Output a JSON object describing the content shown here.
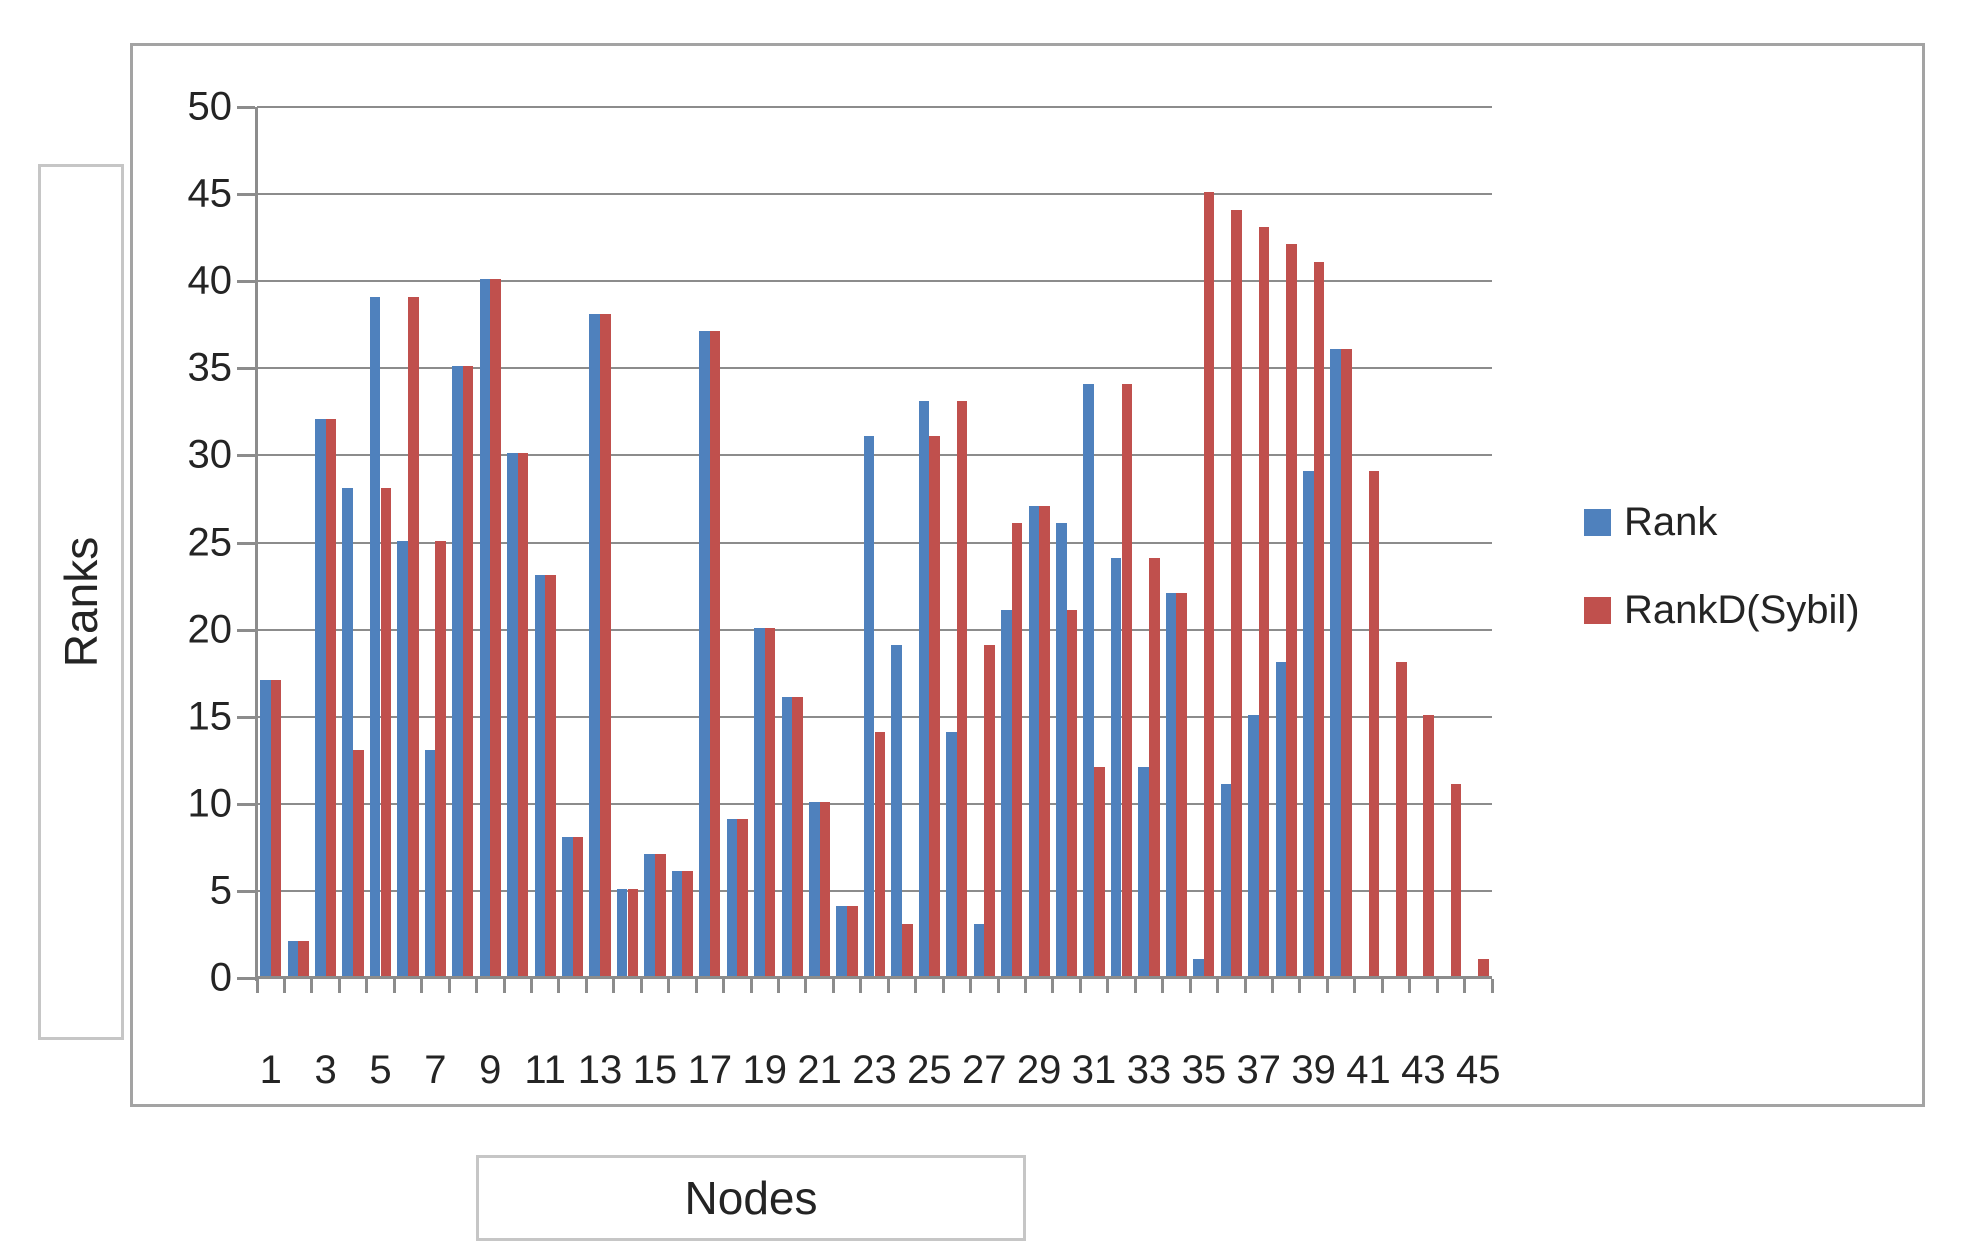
{
  "chart_data": {
    "type": "bar",
    "title": "",
    "xlabel": "Nodes",
    "ylabel": "Ranks",
    "ylim": [
      0,
      50
    ],
    "yticks": [
      0,
      5,
      10,
      15,
      20,
      25,
      30,
      35,
      40,
      45,
      50
    ],
    "grid": "horizontal",
    "legend_position": "right",
    "categories": [
      1,
      2,
      3,
      4,
      5,
      6,
      7,
      8,
      9,
      10,
      11,
      12,
      13,
      14,
      15,
      16,
      17,
      18,
      19,
      20,
      21,
      22,
      23,
      24,
      25,
      26,
      27,
      28,
      29,
      30,
      31,
      32,
      33,
      34,
      35,
      36,
      37,
      38,
      39,
      40,
      41,
      42,
      43,
      44,
      45
    ],
    "xtick_labels_shown": [
      "1",
      "3",
      "5",
      "7",
      "9",
      "11",
      "13",
      "15",
      "17",
      "19",
      "21",
      "23",
      "25",
      "27",
      "29",
      "31",
      "33",
      "35",
      "37",
      "39",
      "41",
      "43",
      "45"
    ],
    "series": [
      {
        "name": "Rank",
        "color": "#4F81BD",
        "values": [
          17,
          2,
          32,
          28,
          39,
          25,
          13,
          35,
          40,
          30,
          23,
          8,
          38,
          5,
          7,
          6,
          37,
          9,
          20,
          16,
          10,
          4,
          31,
          19,
          33,
          14,
          3,
          21,
          27,
          26,
          34,
          24,
          12,
          22,
          1,
          11,
          15,
          18,
          29,
          36,
          null,
          null,
          null,
          null,
          null
        ]
      },
      {
        "name": "RankD(Sybil)",
        "color": "#C0504D",
        "values": [
          17,
          2,
          32,
          13,
          28,
          39,
          25,
          35,
          40,
          30,
          23,
          8,
          38,
          5,
          7,
          6,
          37,
          9,
          20,
          16,
          10,
          4,
          14,
          3,
          31,
          33,
          19,
          26,
          27,
          21,
          12,
          34,
          24,
          22,
          45,
          44,
          43,
          42,
          41,
          36,
          29,
          18,
          15,
          11,
          1
        ]
      }
    ]
  },
  "axes": {
    "y_title": "Ranks",
    "x_title": "Nodes"
  },
  "legend": {
    "items": [
      {
        "label": "Rank",
        "color": "#4F81BD"
      },
      {
        "label": "RankD(Sybil)",
        "color": "#C0504D"
      }
    ]
  },
  "colors": {
    "bar_blue": "#4F81BD",
    "bar_red": "#C0504D",
    "gridline": "#8c8c8c",
    "chart_border": "#a3a3a3",
    "title_box_border": "#c6c6c6",
    "text": "#242424",
    "background": "#ffffff"
  }
}
